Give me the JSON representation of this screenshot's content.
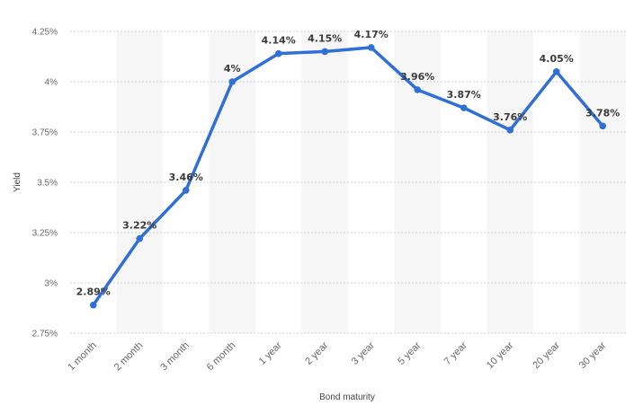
{
  "chart_data": {
    "type": "line",
    "title": "",
    "xlabel": "Bond maturity",
    "ylabel": "Yield",
    "categories": [
      "1 month",
      "2 month",
      "3 month",
      "6 month",
      "1 year",
      "2 year",
      "3 year",
      "5 year",
      "7 year",
      "10 year",
      "20 year",
      "30 year"
    ],
    "series": [
      {
        "values": [
          2.89,
          3.22,
          3.46,
          4.0,
          4.14,
          4.15,
          4.17,
          3.96,
          3.87,
          3.76,
          4.05,
          3.78
        ],
        "labels": [
          "2.89%",
          "3.22%",
          "3.46%",
          "4%",
          "4.14%",
          "4.15%",
          "4.17%",
          "3.96%",
          "3.87%",
          "3.76%",
          "4.05%",
          "3.78%"
        ]
      }
    ],
    "ylim": [
      2.75,
      4.25
    ],
    "yticks": [
      2.75,
      3.0,
      3.25,
      3.5,
      3.75,
      4.0,
      4.25
    ],
    "ytick_labels": [
      "2.75%",
      "3%",
      "3.25%",
      "3.5%",
      "3.75%",
      "4%",
      "4.25%"
    ],
    "grid": "horizontal dashed",
    "alternating_column_bands": true,
    "legend": "none",
    "colors": {
      "line": "#2f6fd6",
      "band": "#f6f6f6",
      "grid": "#cfcfcf"
    }
  }
}
